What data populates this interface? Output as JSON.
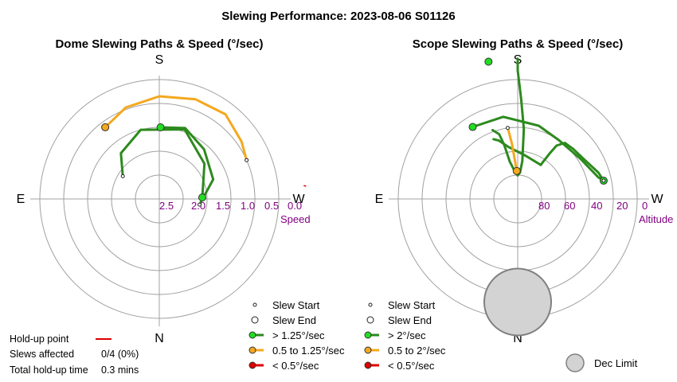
{
  "title": "Slewing Performance: 2023-08-06 S01126",
  "chart_data": [
    {
      "type": "polar",
      "title": "Dome Slewing Paths & Speed (°/sec)",
      "compass": {
        "top": "S",
        "bottom": "N",
        "left": "E",
        "right": "W"
      },
      "radial_label": "Speed",
      "radial_ticks": [
        "2.5",
        "2.0",
        "1.5",
        "1.0",
        "0.5",
        "0.0"
      ],
      "series": [
        {
          "color": "#2d8a1e",
          "values": [
            [
              268,
              2.1
            ],
            [
              232,
              1.8
            ],
            [
              200,
              1.45
            ],
            [
              165,
              1.5
            ],
            [
              140,
              1.75
            ],
            [
              122,
              2.1
            ]
          ]
        },
        {
          "color": "#2d8a1e",
          "values": [
            [
              181,
              1.5
            ],
            [
              200,
              1.42
            ],
            [
              222,
              1.6
            ],
            [
              250,
              1.8
            ],
            [
              278,
              2.15
            ]
          ]
        },
        {
          "color": "#f4a81e",
          "values": [
            [
              143,
              1.12
            ],
            [
              160,
              0.96
            ],
            [
              180,
              0.85
            ],
            [
              200,
              0.78
            ],
            [
              218,
              0.75
            ],
            [
              235,
              0.9
            ],
            [
              246,
              1.0
            ]
          ]
        }
      ],
      "markers": [
        {
          "type": "end",
          "az": 268,
          "r": 2.1,
          "color": "#22dd22"
        },
        {
          "type": "start",
          "az": 122,
          "r": 2.1
        },
        {
          "type": "end",
          "az": 181,
          "r": 1.5,
          "color": "#22dd22"
        },
        {
          "type": "start",
          "az": 278,
          "r": 2.15
        },
        {
          "type": "end",
          "az": 143,
          "r": 1.12,
          "color": "#f4a81e"
        },
        {
          "type": "start",
          "az": 246,
          "r": 1.0
        }
      ],
      "holdups": [
        {
          "az": 265,
          "r": -0.05
        }
      ],
      "legend": [
        {
          "kind": "start",
          "label": "Slew Start"
        },
        {
          "kind": "end",
          "label": "Slew End"
        },
        {
          "kind": "line",
          "color": "#2d8a1e",
          "dot": "#22dd22",
          "label": "> 1.25°/sec"
        },
        {
          "kind": "line",
          "color": "#f4a81e",
          "dot": "#f4a81e",
          "label": "0.5 to 1.25°/sec"
        },
        {
          "kind": "line",
          "color": "#dd0000",
          "dot": "#dd0000",
          "label": "< 0.5°/sec"
        }
      ]
    },
    {
      "type": "polar",
      "title": "Scope Slewing Paths & Speed (°/sec)",
      "compass": {
        "top": "S",
        "bottom": "N",
        "left": "E",
        "right": "W"
      },
      "radial_label": "Altitude",
      "radial_ticks": [
        "80",
        "60",
        "40",
        "20",
        "0"
      ],
      "series": [
        {
          "color": "#2d8a1e",
          "values": [
            [
              180,
              2
            ],
            [
              180,
              10
            ],
            [
              182,
              30
            ],
            [
              185,
              50
            ],
            [
              187,
              72
            ],
            [
              185,
              80
            ],
            [
              180,
              82
            ]
          ]
        },
        {
          "color": "#2d8a1e",
          "values": [
            [
              180,
              82
            ],
            [
              175,
              80
            ],
            [
              168,
              72
            ],
            [
              166,
              60
            ],
            [
              164,
              52
            ],
            [
              160,
              48
            ]
          ]
        },
        {
          "color": "#2d8a1e",
          "values": [
            [
              148,
              40
            ],
            [
              170,
              41
            ],
            [
              196,
              46
            ],
            [
              215,
              49
            ],
            [
              238,
              47
            ],
            [
              255,
              41
            ],
            [
              258,
              38
            ]
          ]
        },
        {
          "color": "#2d8a1e",
          "values": [
            [
              258,
              38
            ],
            [
              252,
              40
            ],
            [
              240,
              45
            ],
            [
              228,
              47
            ],
            [
              220,
              48
            ],
            [
              216,
              53
            ],
            [
              215,
              60
            ],
            [
              214,
              70
            ]
          ]
        },
        {
          "color": "#2d8a1e",
          "values": [
            [
              214,
              70
            ],
            [
              190,
              68
            ],
            [
              170,
              62
            ],
            [
              162,
              56
            ],
            [
              158,
              54
            ]
          ]
        },
        {
          "color": "#f4a81e",
          "values": [
            [
              178,
              79
            ],
            [
              174,
              60
            ],
            [
              172,
              49
            ]
          ]
        }
      ],
      "markers": [
        {
          "type": "end",
          "az": 178,
          "r": 79,
          "color": "#f4a81e"
        },
        {
          "type": "start",
          "az": 172,
          "r": 49
        },
        {
          "type": "end",
          "az": 148,
          "r": 40,
          "color": "#22dd22"
        },
        {
          "type": "end",
          "az": 258,
          "r": 38,
          "color": "#22dd22"
        },
        {
          "type": "start",
          "az": 258,
          "r": 38
        },
        {
          "type": "end",
          "az": 168,
          "r": 2,
          "color": "#22dd22"
        }
      ],
      "dec_limit": {
        "az": 0,
        "r": 33,
        "radius": 22
      },
      "legend": [
        {
          "kind": "start",
          "label": "Slew Start"
        },
        {
          "kind": "end",
          "label": "Slew End"
        },
        {
          "kind": "line",
          "color": "#2d8a1e",
          "dot": "#22dd22",
          "label": "> 2°/sec"
        },
        {
          "kind": "line",
          "color": "#f4a81e",
          "dot": "#f4a81e",
          "label": "0.5 to 2°/sec"
        },
        {
          "kind": "line",
          "color": "#dd0000",
          "dot": "#dd0000",
          "label": "< 0.5°/sec"
        }
      ],
      "dec_legend": "Dec Limit"
    }
  ],
  "holdup": {
    "point_label": "Hold-up point",
    "point_color": "#dd0000",
    "slews_label": "Slews affected",
    "slews_value": "0/4 (0%)",
    "time_label": "Total hold-up time",
    "time_value": "0.3 mins"
  }
}
